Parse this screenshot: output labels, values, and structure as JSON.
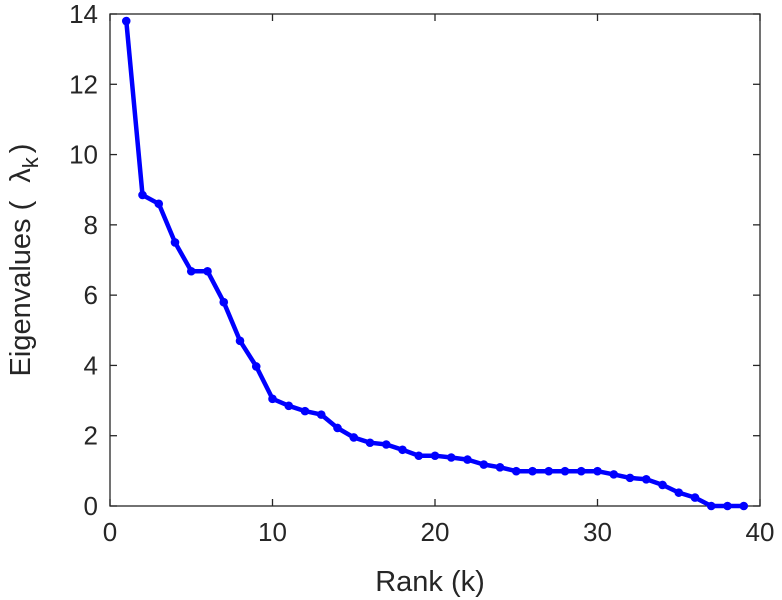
{
  "chart_data": {
    "type": "line",
    "title": "",
    "xlabel": "Rank (k)",
    "ylabel_main": "Eigenvalues (",
    "ylabel_symbol": "λ",
    "ylabel_sub": "k",
    "ylabel_close": ")",
    "xlim": [
      0,
      40
    ],
    "ylim": [
      0,
      14
    ],
    "xticks": [
      "0",
      "10",
      "20",
      "30",
      "40"
    ],
    "yticks": [
      "0",
      "2",
      "4",
      "6",
      "8",
      "10",
      "12",
      "14"
    ],
    "grid": false,
    "color": "#0000ff",
    "series": [
      {
        "x": [
          1,
          2,
          3,
          4,
          5,
          6,
          7,
          8,
          9,
          10,
          11,
          12,
          13,
          14,
          15,
          16,
          17,
          18,
          19,
          20,
          21,
          22,
          23,
          24,
          25,
          26,
          27,
          28,
          29,
          30,
          31,
          32,
          33,
          34,
          35,
          36,
          37,
          38,
          39
        ],
        "values": [
          13.8,
          8.85,
          8.6,
          7.5,
          6.68,
          6.68,
          5.8,
          4.7,
          3.97,
          3.05,
          2.85,
          2.7,
          2.6,
          2.22,
          1.95,
          1.8,
          1.75,
          1.6,
          1.43,
          1.43,
          1.38,
          1.32,
          1.18,
          1.1,
          0.99,
          0.99,
          0.99,
          0.99,
          0.99,
          0.99,
          0.9,
          0.8,
          0.76,
          0.6,
          0.38,
          0.24,
          0.0,
          0.0,
          0.0
        ]
      }
    ]
  }
}
